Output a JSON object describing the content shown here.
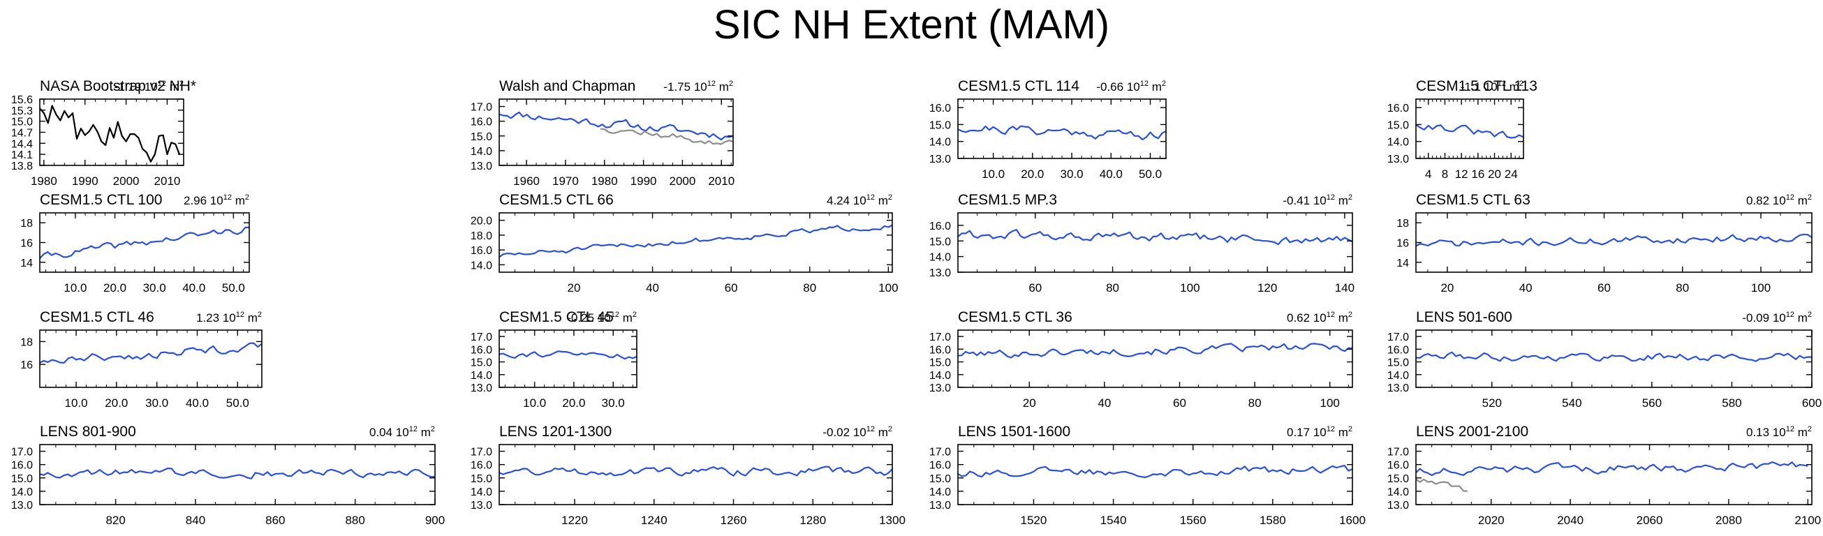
{
  "page": {
    "title": "SIC NH Extent (MAM)"
  },
  "colors": {
    "model_line": "#2b50d8",
    "obs_line": "#000000",
    "overlay_line": "#8c8c8c",
    "frame": "#000000"
  },
  "chart_data": [
    {
      "id": "nasa",
      "type": "line",
      "title": "NASA Bootstrap v2 NH*",
      "trend_value": "-1.19",
      "trend_unit_prefix": "10",
      "trend_exp": "12",
      "trend_unit_suffix": " m",
      "trend_unit_sup": "2",
      "xlim": [
        1979,
        2014
      ],
      "ylim": [
        13.8,
        15.6
      ],
      "xticks": [
        1980,
        1990,
        2000,
        2010
      ],
      "yticks": [
        13.8,
        14.1,
        14.4,
        14.7,
        15.0,
        15.3,
        15.6
      ],
      "ytick_labels": [
        "13.8",
        "14.1",
        "14.4",
        "14.7",
        "15.0",
        "15.3",
        "15.6"
      ],
      "series": [
        {
          "color": "#000000",
          "x": [
            1979,
            1980,
            1981,
            1982,
            1983,
            1984,
            1985,
            1986,
            1987,
            1988,
            1989,
            1990,
            1991,
            1992,
            1993,
            1994,
            1995,
            1996,
            1997,
            1998,
            1999,
            2000,
            2001,
            2002,
            2003,
            2004,
            2005,
            2006,
            2007,
            2008,
            2009,
            2010,
            2011,
            2012,
            2013
          ],
          "y": [
            15.35,
            15.22,
            14.95,
            15.42,
            15.18,
            15.02,
            15.28,
            15.1,
            15.22,
            14.52,
            14.8,
            14.62,
            14.72,
            14.9,
            14.72,
            14.45,
            14.35,
            14.82,
            14.55,
            14.98,
            14.6,
            14.45,
            14.65,
            14.65,
            14.55,
            14.25,
            14.15,
            13.9,
            14.1,
            14.6,
            14.62,
            14.1,
            14.42,
            14.38,
            14.1
          ]
        }
      ]
    },
    {
      "id": "walsh",
      "type": "line",
      "title": "Walsh and Chapman",
      "trend_value": "-1.75",
      "trend_unit_prefix": "10",
      "trend_exp": "12",
      "trend_unit_suffix": " m",
      "trend_unit_sup": "2",
      "xlim": [
        1953,
        2013
      ],
      "ylim": [
        13.0,
        17.5
      ],
      "xticks": [
        1960,
        1970,
        1980,
        1990,
        2000,
        2010
      ],
      "yticks": [
        13.0,
        14.0,
        15.0,
        16.0,
        17.0
      ],
      "ytick_labels": [
        "13.0",
        "14.0",
        "15.0",
        "16.0",
        "17.0"
      ],
      "series": [
        {
          "color": "#2b50d8",
          "seed": 11,
          "n": 60,
          "x0": 1953,
          "x1": 2013,
          "mean": 15.8,
          "slope": -1.6,
          "amp": 0.35
        },
        {
          "color": "#8c8c8c",
          "seed": 12,
          "n": 34,
          "x0": 1979,
          "x1": 2013,
          "mean": 15.0,
          "slope": -1.2,
          "amp": 0.3
        }
      ]
    },
    {
      "id": "ctl114",
      "type": "line",
      "title": "CESM1.5 CTL 114",
      "trend_value": "-0.66",
      "trend_unit_prefix": "10",
      "trend_exp": "12",
      "trend_unit_suffix": " m",
      "trend_unit_sup": "2",
      "xlim": [
        1,
        54
      ],
      "ylim": [
        13.0,
        16.5
      ],
      "xticks": [
        10,
        20,
        30,
        40,
        50
      ],
      "xtick_labels": [
        "10.0",
        "20.0",
        "30.0",
        "40.0",
        "50.0"
      ],
      "yticks": [
        13.0,
        14.0,
        15.0,
        16.0
      ],
      "ytick_labels": [
        "13.0",
        "14.0",
        "15.0",
        "16.0"
      ],
      "series": [
        {
          "color": "#2b50d8",
          "seed": 21,
          "n": 54,
          "x0": 1,
          "x1": 54,
          "mean": 14.6,
          "slope": -0.5,
          "amp": 0.35
        }
      ]
    },
    {
      "id": "ctl113",
      "type": "line",
      "title": "CESM1.5 CTL 113",
      "trend_value": "-1.1",
      "trend_unit_prefix": "10",
      "trend_exp": "12",
      "trend_unit_suffix": " m",
      "trend_unit_sup": "2",
      "xlim": [
        1,
        27
      ],
      "ylim": [
        13.0,
        16.5
      ],
      "xticks": [
        4,
        8,
        12,
        16,
        20,
        24
      ],
      "yticks": [
        13.0,
        14.0,
        15.0,
        16.0
      ],
      "ytick_labels": [
        "13.0",
        "14.0",
        "15.0",
        "16.0"
      ],
      "series": [
        {
          "color": "#2b50d8",
          "seed": 31,
          "n": 27,
          "x0": 1,
          "x1": 27,
          "mean": 14.6,
          "slope": -1.0,
          "amp": 0.3
        }
      ]
    },
    {
      "id": "ctl100",
      "type": "line",
      "title": "CESM1.5 CTL 100",
      "trend_value": "2.96",
      "trend_unit_prefix": "10",
      "trend_exp": "12",
      "trend_unit_suffix": " m",
      "trend_unit_sup": "2",
      "xlim": [
        1,
        54
      ],
      "ylim": [
        13.0,
        19.0
      ],
      "xticks": [
        10,
        20,
        30,
        40,
        50
      ],
      "xtick_labels": [
        "10.0",
        "20.0",
        "30.0",
        "40.0",
        "50.0"
      ],
      "yticks": [
        14,
        16,
        18
      ],
      "ytick_labels": [
        "14",
        "16",
        "18"
      ],
      "series": [
        {
          "color": "#2b50d8",
          "seed": 41,
          "n": 54,
          "x0": 1,
          "x1": 54,
          "mean": 16.0,
          "slope": 2.9,
          "amp": 0.45
        }
      ]
    },
    {
      "id": "ctl66",
      "type": "line",
      "title": "CESM1.5 CTL 66",
      "trend_value": "4.24",
      "trend_unit_prefix": "10",
      "trend_exp": "12",
      "trend_unit_suffix": " m",
      "trend_unit_sup": "2",
      "xlim": [
        1,
        101
      ],
      "ylim": [
        13.0,
        21.0
      ],
      "xticks": [
        20,
        40,
        60,
        80,
        100
      ],
      "yticks": [
        14.0,
        16.0,
        18.0,
        20.0
      ],
      "ytick_labels": [
        "14.0",
        "16.0",
        "18.0",
        "20.0"
      ],
      "series": [
        {
          "color": "#2b50d8",
          "seed": 51,
          "n": 101,
          "x0": 1,
          "x1": 101,
          "mean": 17.3,
          "slope": 4.2,
          "amp": 0.45
        }
      ]
    },
    {
      "id": "mp3",
      "type": "line",
      "title": "CESM1.5 MP.3",
      "trend_value": "-0.41",
      "trend_unit_prefix": "10",
      "trend_exp": "12",
      "trend_unit_suffix": " m",
      "trend_unit_sup": "2",
      "xlim": [
        40,
        142
      ],
      "ylim": [
        13.0,
        16.8
      ],
      "xticks": [
        60,
        80,
        100,
        120,
        140
      ],
      "yticks": [
        13.0,
        14.0,
        15.0,
        16.0
      ],
      "ytick_labels": [
        "13.0",
        "14.0",
        "15.0",
        "16.0"
      ],
      "series": [
        {
          "color": "#2b50d8",
          "seed": 61,
          "n": 102,
          "x0": 40,
          "x1": 142,
          "mean": 15.2,
          "slope": -0.4,
          "amp": 0.35
        }
      ]
    },
    {
      "id": "ctl63",
      "type": "line",
      "title": "CESM1.5 CTL 63",
      "trend_value": "0.82",
      "trend_unit_prefix": "10",
      "trend_exp": "12",
      "trend_unit_suffix": " m",
      "trend_unit_sup": "2",
      "xlim": [
        12,
        113
      ],
      "ylim": [
        13.0,
        19.0
      ],
      "xticks": [
        20,
        40,
        60,
        80,
        100
      ],
      "yticks": [
        14,
        16,
        18
      ],
      "ytick_labels": [
        "14",
        "16",
        "18"
      ],
      "series": [
        {
          "color": "#2b50d8",
          "seed": 71,
          "n": 101,
          "x0": 12,
          "x1": 113,
          "mean": 16.2,
          "slope": 0.8,
          "amp": 0.45
        }
      ]
    },
    {
      "id": "ctl46",
      "type": "line",
      "title": "CESM1.5 CTL 46",
      "trend_value": "1.23",
      "trend_unit_prefix": "10",
      "trend_exp": "12",
      "trend_unit_suffix": " m",
      "trend_unit_sup": "2",
      "xlim": [
        1,
        56
      ],
      "ylim": [
        14.0,
        19.0
      ],
      "xticks": [
        10,
        20,
        30,
        40,
        50
      ],
      "xtick_labels": [
        "10.0",
        "20.0",
        "30.0",
        "40.0",
        "50.0"
      ],
      "yticks": [
        16,
        18
      ],
      "ytick_labels": [
        "16",
        "18"
      ],
      "series": [
        {
          "color": "#2b50d8",
          "seed": 81,
          "n": 56,
          "x0": 1,
          "x1": 56,
          "mean": 16.9,
          "slope": 1.2,
          "amp": 0.45
        }
      ]
    },
    {
      "id": "ctl45",
      "type": "line",
      "title": "CESM1.5 CTL 45",
      "trend_value": "-0.25",
      "trend_unit_prefix": "10",
      "trend_exp": "12",
      "trend_unit_suffix": " m",
      "trend_unit_sup": "2",
      "xlim": [
        1,
        36
      ],
      "ylim": [
        13.0,
        17.5
      ],
      "xticks": [
        10,
        20,
        30
      ],
      "xtick_labels": [
        "10.0",
        "20.0",
        "30.0"
      ],
      "yticks": [
        13.0,
        14.0,
        15.0,
        16.0,
        17.0
      ],
      "ytick_labels": [
        "13.0",
        "14.0",
        "15.0",
        "16.0",
        "17.0"
      ],
      "series": [
        {
          "color": "#2b50d8",
          "seed": 91,
          "n": 36,
          "x0": 1,
          "x1": 36,
          "mean": 15.6,
          "slope": -0.2,
          "amp": 0.3
        }
      ]
    },
    {
      "id": "ctl36",
      "type": "line",
      "title": "CESM1.5 CTL 36",
      "trend_value": "0.62",
      "trend_unit_prefix": "10",
      "trend_exp": "12",
      "trend_unit_suffix": " m",
      "trend_unit_sup": "2",
      "xlim": [
        1,
        106
      ],
      "ylim": [
        13.0,
        17.5
      ],
      "xticks": [
        20,
        40,
        60,
        80,
        100
      ],
      "yticks": [
        13.0,
        14.0,
        15.0,
        16.0,
        17.0
      ],
      "ytick_labels": [
        "13.0",
        "14.0",
        "15.0",
        "16.0",
        "17.0"
      ],
      "series": [
        {
          "color": "#2b50d8",
          "seed": 101,
          "n": 105,
          "x0": 1,
          "x1": 106,
          "mean": 15.9,
          "slope": 0.6,
          "amp": 0.35
        }
      ]
    },
    {
      "id": "lens501",
      "type": "line",
      "title": "LENS 501-600",
      "trend_value": "-0.09",
      "trend_unit_prefix": "10",
      "trend_exp": "12",
      "trend_unit_suffix": " m",
      "trend_unit_sup": "2",
      "xlim": [
        501,
        600
      ],
      "ylim": [
        13.0,
        17.5
      ],
      "xticks": [
        520,
        540,
        560,
        580,
        600
      ],
      "yticks": [
        13.0,
        14.0,
        15.0,
        16.0,
        17.0
      ],
      "ytick_labels": [
        "13.0",
        "14.0",
        "15.0",
        "16.0",
        "17.0"
      ],
      "series": [
        {
          "color": "#2b50d8",
          "seed": 111,
          "n": 100,
          "x0": 501,
          "x1": 600,
          "mean": 15.4,
          "slope": -0.1,
          "amp": 0.35
        }
      ]
    },
    {
      "id": "lens801",
      "type": "line",
      "title": "LENS 801-900",
      "trend_value": "0.04",
      "trend_unit_prefix": "10",
      "trend_exp": "12",
      "trend_unit_suffix": " m",
      "trend_unit_sup": "2",
      "xlim": [
        801,
        900
      ],
      "ylim": [
        13.0,
        17.5
      ],
      "xticks": [
        820,
        840,
        860,
        880,
        900
      ],
      "yticks": [
        13.0,
        14.0,
        15.0,
        16.0,
        17.0
      ],
      "ytick_labels": [
        "13.0",
        "14.0",
        "15.0",
        "16.0",
        "17.0"
      ],
      "series": [
        {
          "color": "#2b50d8",
          "seed": 121,
          "n": 100,
          "x0": 801,
          "x1": 900,
          "mean": 15.4,
          "slope": 0.0,
          "amp": 0.35
        }
      ]
    },
    {
      "id": "lens1201",
      "type": "line",
      "title": "LENS 1201-1300",
      "trend_value": "-0.02",
      "trend_unit_prefix": "10",
      "trend_exp": "12",
      "trend_unit_suffix": " m",
      "trend_unit_sup": "2",
      "xlim": [
        1201,
        1300
      ],
      "ylim": [
        13.0,
        17.5
      ],
      "xticks": [
        1220,
        1240,
        1260,
        1280,
        1300
      ],
      "yticks": [
        13.0,
        14.0,
        15.0,
        16.0,
        17.0
      ],
      "ytick_labels": [
        "13.0",
        "14.0",
        "15.0",
        "16.0",
        "17.0"
      ],
      "series": [
        {
          "color": "#2b50d8",
          "seed": 131,
          "n": 100,
          "x0": 1201,
          "x1": 1300,
          "mean": 15.5,
          "slope": 0.0,
          "amp": 0.35
        }
      ]
    },
    {
      "id": "lens1501",
      "type": "line",
      "title": "LENS 1501-1600",
      "trend_value": "0.17",
      "trend_unit_prefix": "10",
      "trend_exp": "12",
      "trend_unit_suffix": " m",
      "trend_unit_sup": "2",
      "xlim": [
        1501,
        1600
      ],
      "ylim": [
        13.0,
        17.5
      ],
      "xticks": [
        1520,
        1540,
        1560,
        1580,
        1600
      ],
      "yticks": [
        13.0,
        14.0,
        15.0,
        16.0,
        17.0
      ],
      "ytick_labels": [
        "13.0",
        "14.0",
        "15.0",
        "16.0",
        "17.0"
      ],
      "series": [
        {
          "color": "#2b50d8",
          "seed": 141,
          "n": 100,
          "x0": 1501,
          "x1": 1600,
          "mean": 15.5,
          "slope": 0.2,
          "amp": 0.35
        }
      ]
    },
    {
      "id": "lens2001",
      "type": "line",
      "title": "LENS 2001-2100",
      "trend_value": "0.13",
      "trend_unit_prefix": "10",
      "trend_exp": "12",
      "trend_unit_suffix": " m",
      "trend_unit_sup": "2",
      "xlim": [
        2001,
        2101
      ],
      "ylim": [
        13.0,
        17.5
      ],
      "xticks": [
        2020,
        2040,
        2060,
        2080,
        2100
      ],
      "yticks": [
        13.0,
        14.0,
        15.0,
        16.0,
        17.0
      ],
      "ytick_labels": [
        "13.0",
        "14.0",
        "15.0",
        "16.0",
        "17.0"
      ],
      "series": [
        {
          "color": "#2b50d8",
          "seed": 151,
          "n": 100,
          "x0": 2001,
          "x1": 2100,
          "mean": 15.7,
          "slope": 0.4,
          "amp": 0.35
        },
        {
          "color": "#8c8c8c",
          "seed": 152,
          "n": 14,
          "x0": 2001,
          "x1": 2014,
          "mean": 14.5,
          "slope": -1.0,
          "amp": 0.3
        }
      ]
    }
  ]
}
